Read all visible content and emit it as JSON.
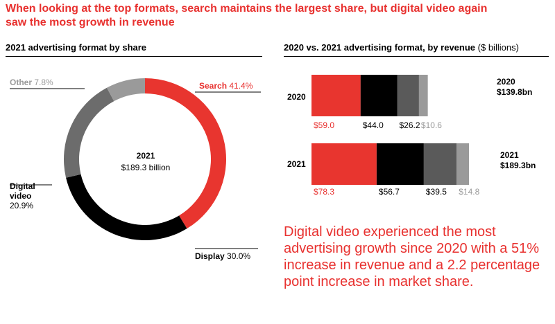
{
  "headline": "When looking at the top formats, search maintains the largest share, but digital video again saw the most growth in revenue",
  "chart_data": [
    {
      "type": "pie",
      "variant": "donut",
      "title": "2021 advertising format by share",
      "center": {
        "year": "2021",
        "total": "$189.3 billion"
      },
      "slices": [
        {
          "name": "Search",
          "value": 41.4,
          "label": "41.4%",
          "color": "#e8352f"
        },
        {
          "name": "Display",
          "value": 30.0,
          "label": "30.0%",
          "color": "#000000"
        },
        {
          "name": "Digital video",
          "value": 20.9,
          "label": "20.9%",
          "color": "#6c6c6c"
        },
        {
          "name": "Other",
          "value": 7.8,
          "label": "7.8%",
          "color": "#9a9a9a"
        }
      ]
    },
    {
      "type": "bar",
      "orientation": "horizontal",
      "stacked": true,
      "title": "2020 vs. 2021 advertising format, by revenue",
      "unit": "($ billions)",
      "categories": [
        "2020",
        "2021"
      ],
      "series": [
        {
          "name": "Search",
          "values": [
            59.0,
            78.3
          ],
          "labels": [
            "$59.0",
            "$78.3"
          ],
          "color": "#e8352f",
          "label_color": "#e8312f"
        },
        {
          "name": "Display",
          "values": [
            44.0,
            56.7
          ],
          "labels": [
            "$44.0",
            "$56.7"
          ],
          "color": "#000000",
          "label_color": "#000000"
        },
        {
          "name": "Digital video",
          "values": [
            26.2,
            39.5
          ],
          "labels": [
            "$26.2",
            "$39.5"
          ],
          "color": "#5a5a5a",
          "label_color": "#000000"
        },
        {
          "name": "Other",
          "values": [
            10.6,
            14.8
          ],
          "labels": [
            "$10.6",
            "$14.8"
          ],
          "color": "#9a9a9a",
          "label_color": "#9a9a9a"
        }
      ],
      "totals": [
        {
          "year": "2020",
          "value": "$139.8bn"
        },
        {
          "year": "2021",
          "value": "$189.3bn"
        }
      ]
    }
  ],
  "callout": "Digital video experienced the most advertising growth since 2020 with a 51% increase in revenue and a 2.2 percentage point increase in market share."
}
